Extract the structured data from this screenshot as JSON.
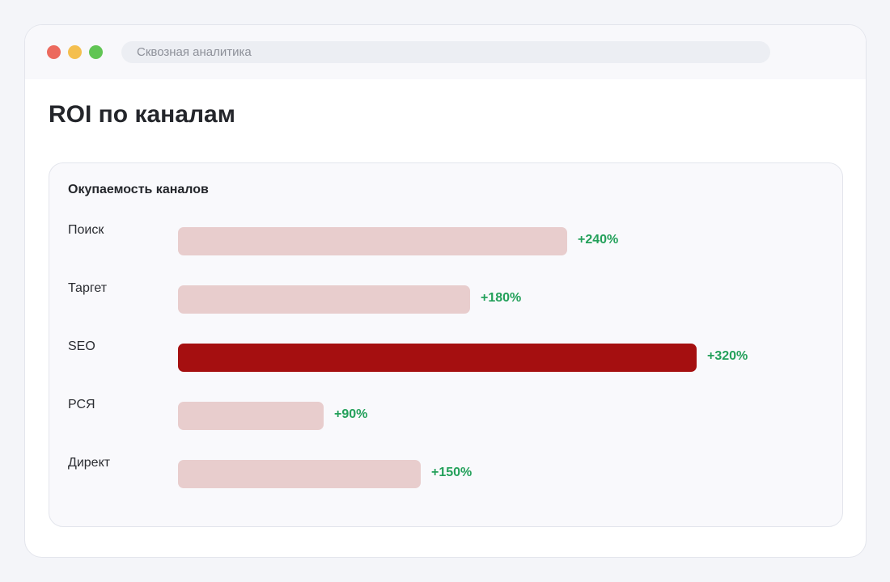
{
  "window": {
    "url_text": "Сквозная аналитика",
    "controls": [
      "close",
      "minimize",
      "maximize"
    ]
  },
  "page": {
    "title": "ROI по каналам"
  },
  "colors": {
    "bar_default": "#e8cdcd",
    "bar_highlight": "#a50f10",
    "value_positive": "#23a05a"
  },
  "chart_data": {
    "type": "bar",
    "orientation": "horizontal",
    "title": "Окупаемость каналов",
    "categories": [
      "Поиск",
      "Таргет",
      "SEO",
      "РСЯ",
      "Директ"
    ],
    "values": [
      240,
      180,
      320,
      90,
      150
    ],
    "value_labels": [
      "+240%",
      "+180%",
      "+320%",
      "+90%",
      "+150%"
    ],
    "unit": "%",
    "highlighted_category": "SEO",
    "xlim": [
      0,
      320
    ],
    "grid": false,
    "legend": "none"
  }
}
